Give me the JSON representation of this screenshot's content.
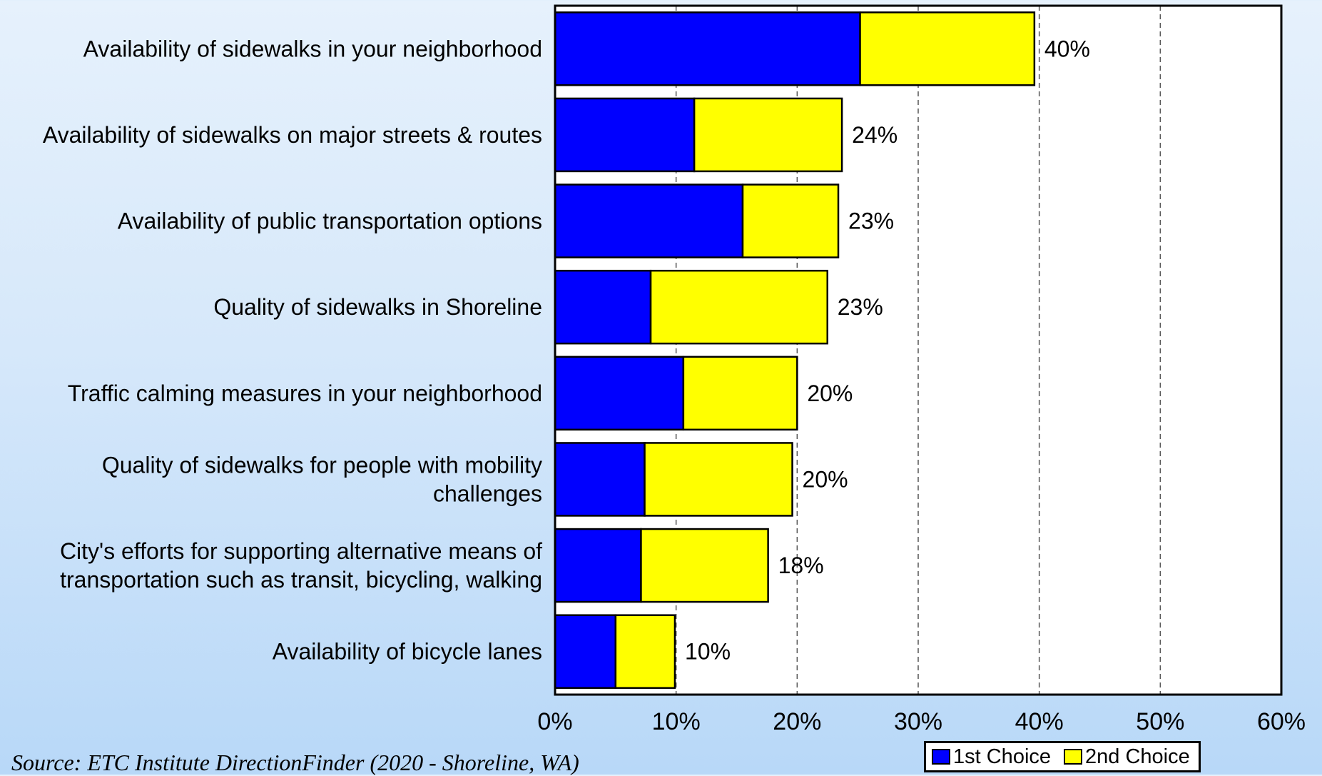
{
  "chart_data": {
    "type": "bar",
    "orientation": "horizontal",
    "stacked": true,
    "categories": [
      [
        "Availability of sidewalks in your neighborhood"
      ],
      [
        "Availability of sidewalks on major streets & routes"
      ],
      [
        "Availability of public transportation options"
      ],
      [
        "Quality of sidewalks in Shoreline"
      ],
      [
        "Traffic calming measures in your neighborhood"
      ],
      [
        "Quality of sidewalks for people with mobility",
        "challenges"
      ],
      [
        "City's efforts for supporting alternative means of",
        "transportation such as transit, bicycling, walking"
      ],
      [
        "Availability of bicycle lanes"
      ]
    ],
    "series": [
      {
        "name": "1st Choice",
        "color": "#0000ff",
        "values": [
          25.2,
          11.5,
          15.5,
          7.9,
          10.6,
          7.4,
          7.1,
          5.0
        ]
      },
      {
        "name": "2nd Choice",
        "color": "#ffff00",
        "values": [
          14.4,
          12.2,
          7.9,
          14.6,
          9.4,
          12.2,
          10.5,
          4.9
        ]
      }
    ],
    "totals_labels": [
      "40%",
      "24%",
      "23%",
      "23%",
      "20%",
      "20%",
      "18%",
      "10%"
    ],
    "xlim": [
      0,
      60
    ],
    "xticks": [
      0,
      10,
      20,
      30,
      40,
      50,
      60
    ],
    "xtick_labels": [
      "0%",
      "10%",
      "20%",
      "30%",
      "40%",
      "50%",
      "60%"
    ],
    "grid": "vertical-dashed",
    "legend_position": "bottom-right"
  },
  "source": "Source:  ETC Institute DirectionFinder (2020 - Shoreline, WA)",
  "legend": [
    {
      "label": "1st Choice",
      "color": "#0000ff"
    },
    {
      "label": "2nd Choice",
      "color": "#ffff00"
    }
  ]
}
